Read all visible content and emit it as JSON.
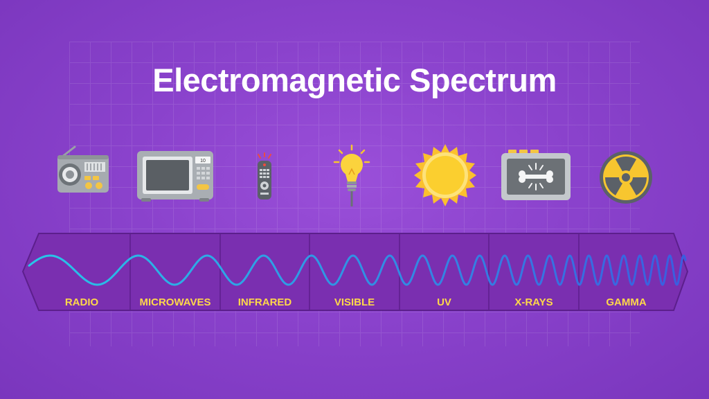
{
  "title": "Electromagnetic Spectrum",
  "colors": {
    "label": "#ffd84a",
    "band_fill": "#7a2fb0",
    "band_stroke": "#5c1f8c",
    "wave_start": "#28c6e8",
    "wave_end": "#3a5de0"
  },
  "bands": [
    {
      "label": "RADIO",
      "icon": "radio-icon"
    },
    {
      "label": "MICROWAVES",
      "icon": "microwave-icon"
    },
    {
      "label": "INFRARED",
      "icon": "remote-control-icon"
    },
    {
      "label": "VISIBLE",
      "icon": "light-bulb-icon"
    },
    {
      "label": "UV",
      "icon": "sun-icon"
    },
    {
      "label": "X-RAYS",
      "icon": "x-ray-bone-icon"
    },
    {
      "label": "GAMMA",
      "icon": "radiation-icon"
    }
  ],
  "microwave_display": "10"
}
